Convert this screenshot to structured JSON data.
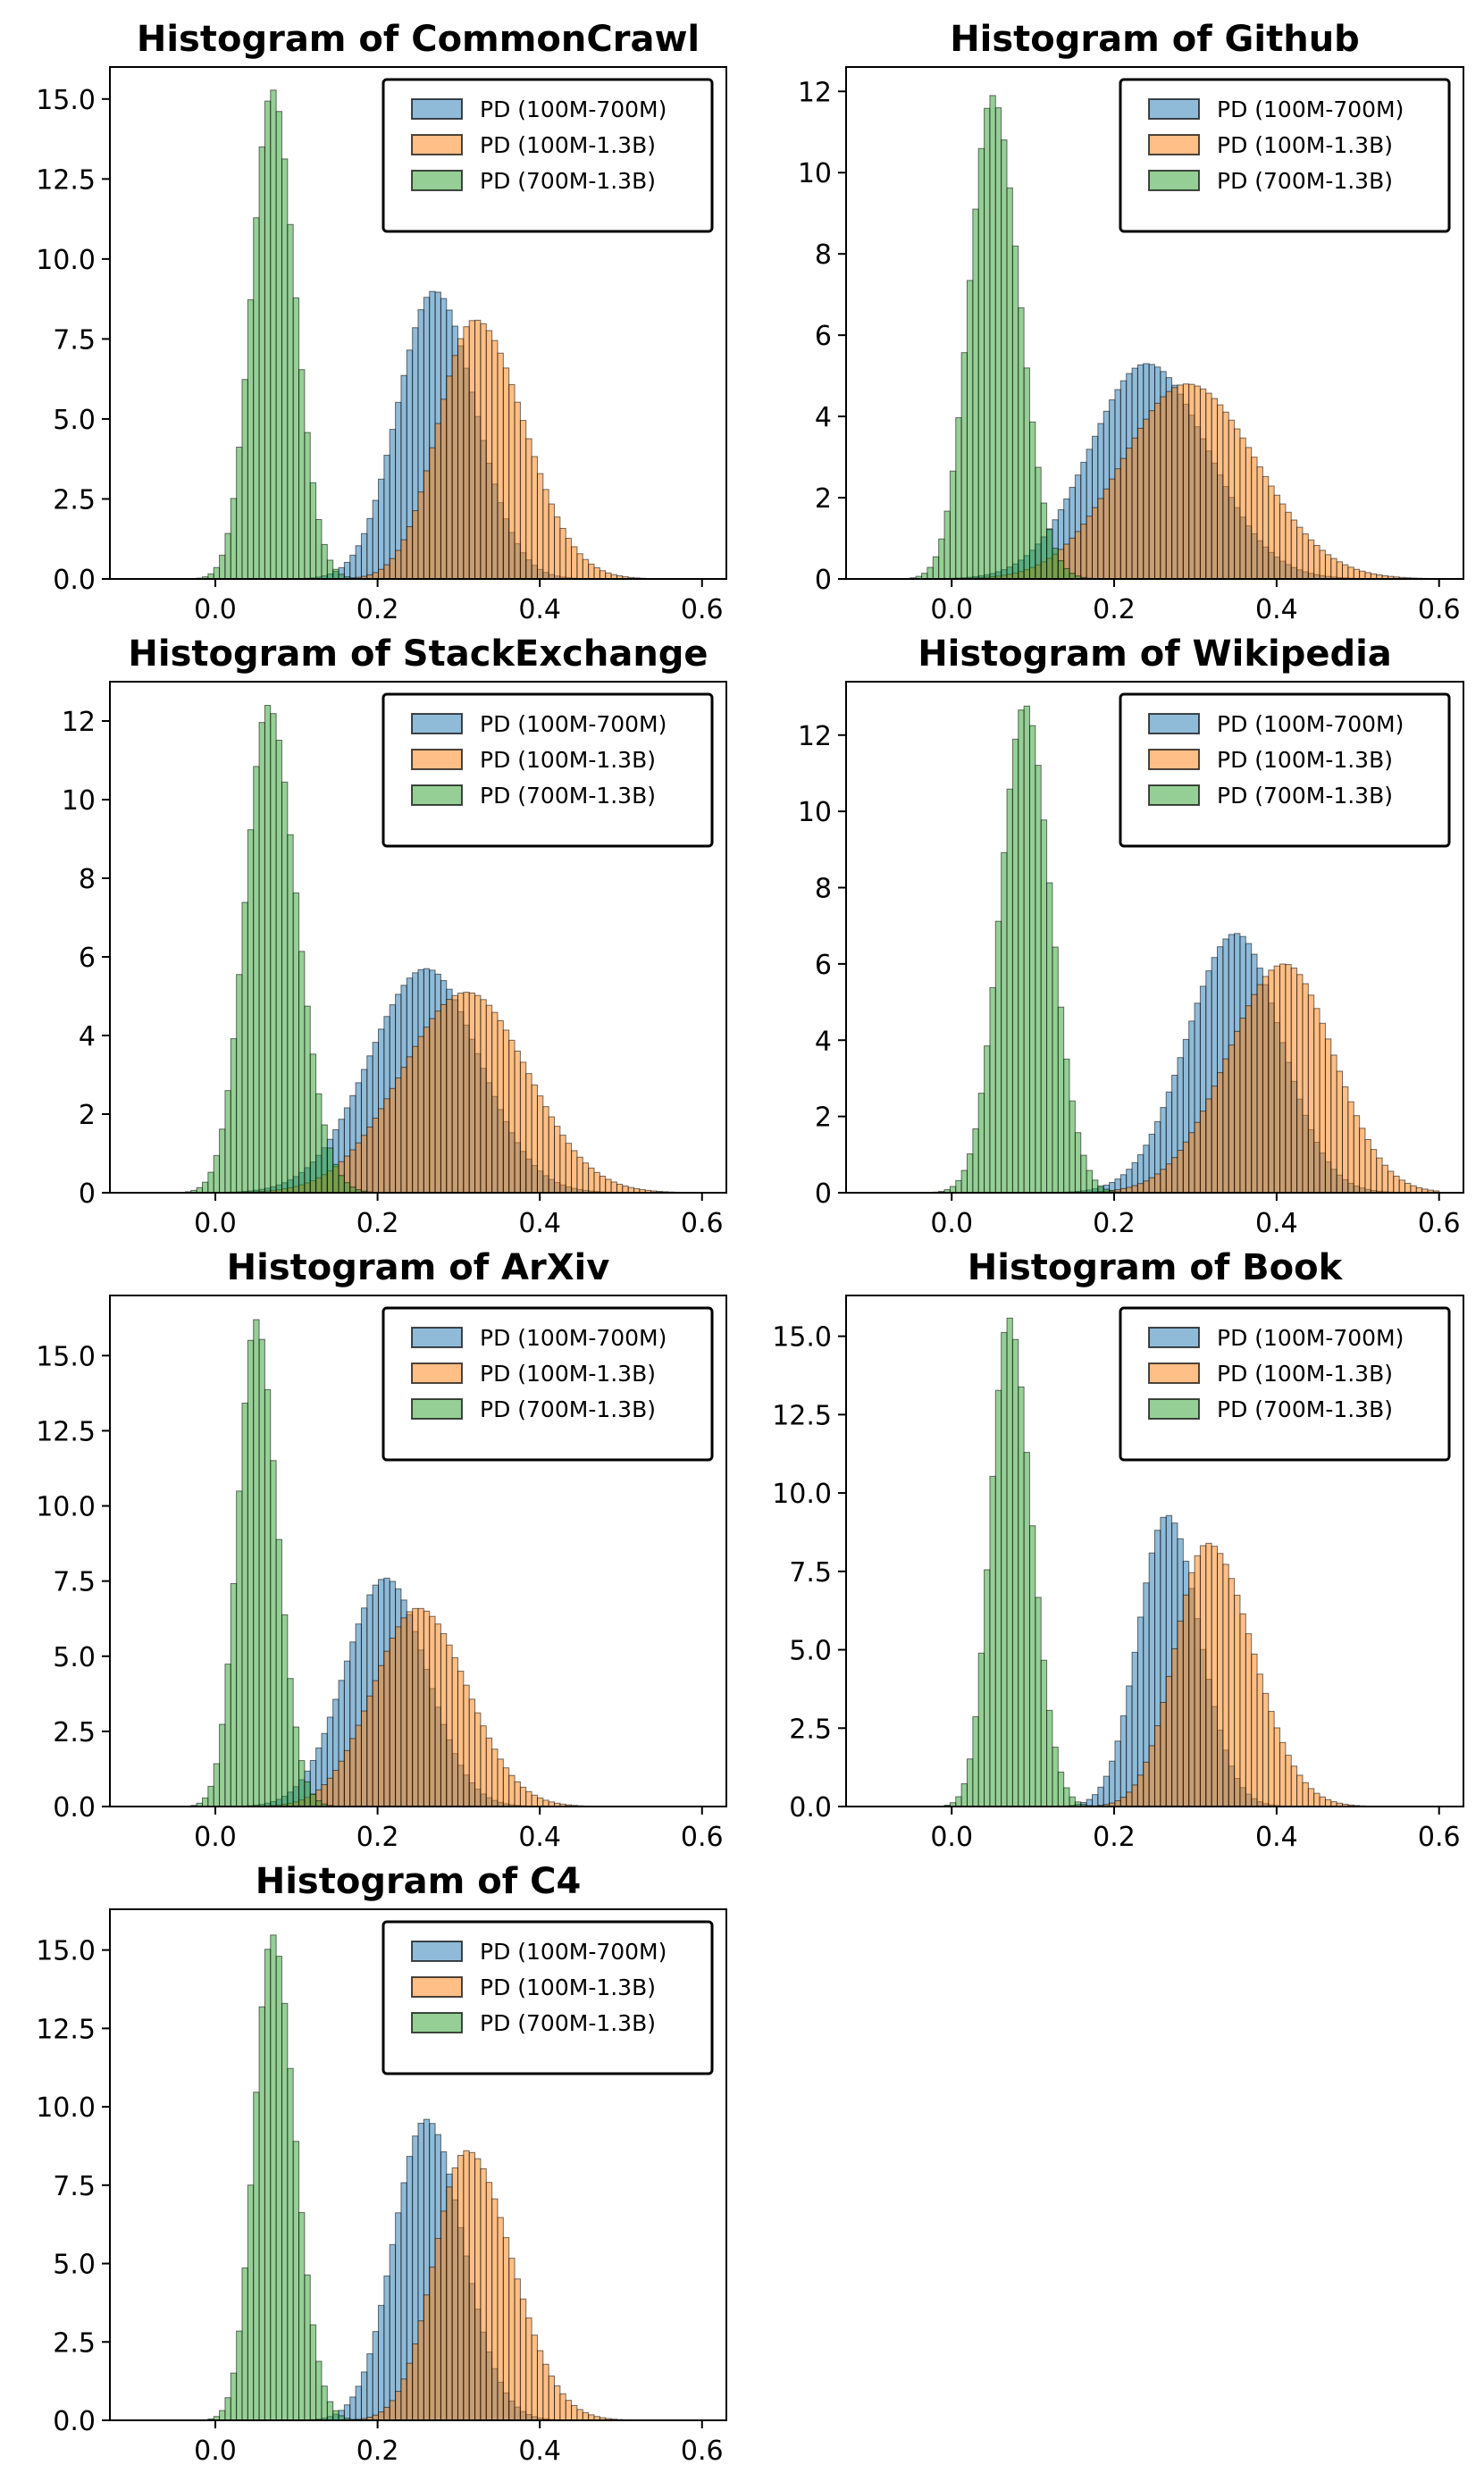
{
  "colors": {
    "series": [
      "#1f77b4",
      "#ff7f0e",
      "#2ca02c"
    ],
    "edge": "#000000"
  },
  "legend_labels": [
    "PD (100M-700M)",
    "PD (100M-1.3B)",
    "PD (700M-1.3B)"
  ],
  "chart_data": [
    {
      "type": "bar",
      "title": "Histogram of CommonCrawl",
      "xlim": [
        -0.13,
        0.63
      ],
      "ylim": [
        0,
        16.0
      ],
      "xticks": [
        0.0,
        0.2,
        0.4,
        0.6
      ],
      "yticks": [
        0.0,
        2.5,
        5.0,
        7.5,
        10.0,
        12.5,
        15.0
      ],
      "xtick_labels": [
        "0.0",
        "0.2",
        "0.4",
        "0.6"
      ],
      "ytick_labels": [
        "0.0",
        "2.5",
        "5.0",
        "7.5",
        "10.0",
        "12.5",
        "15.0"
      ],
      "series": [
        {
          "name": "PD (100M-700M)",
          "mean": 0.27,
          "peak": 9.0,
          "sd_left": 0.045,
          "sd_right": 0.05
        },
        {
          "name": "PD (100M-1.3B)",
          "mean": 0.32,
          "peak": 8.1,
          "sd_left": 0.045,
          "sd_right": 0.06
        },
        {
          "name": "PD (700M-1.3B)",
          "mean": 0.07,
          "peak": 15.3,
          "sd_left": 0.025,
          "sd_right": 0.028
        }
      ]
    },
    {
      "type": "bar",
      "title": "Histogram of Github",
      "xlim": [
        -0.13,
        0.63
      ],
      "ylim": [
        0,
        12.6
      ],
      "xticks": [
        0.0,
        0.2,
        0.4,
        0.6
      ],
      "yticks": [
        0,
        2,
        4,
        6,
        8,
        10,
        12
      ],
      "xtick_labels": [
        "0.0",
        "0.2",
        "0.4",
        "0.6"
      ],
      "ytick_labels": [
        "0",
        "2",
        "4",
        "6",
        "8",
        "10",
        "12"
      ],
      "series": [
        {
          "name": "PD (100M-700M)",
          "mean": 0.24,
          "peak": 5.3,
          "sd_left": 0.07,
          "sd_right": 0.075
        },
        {
          "name": "PD (100M-1.3B)",
          "mean": 0.29,
          "peak": 4.8,
          "sd_left": 0.08,
          "sd_right": 0.085
        },
        {
          "name": "PD (700M-1.3B)",
          "mean": 0.05,
          "peak": 11.9,
          "sd_left": 0.028,
          "sd_right": 0.033
        }
      ]
    },
    {
      "type": "bar",
      "title": "Histogram of StackExchange",
      "xlim": [
        -0.13,
        0.63
      ],
      "ylim": [
        0,
        13.0
      ],
      "xticks": [
        0.0,
        0.2,
        0.4,
        0.6
      ],
      "yticks": [
        0,
        2,
        4,
        6,
        8,
        10,
        12
      ],
      "xtick_labels": [
        "0.0",
        "0.2",
        "0.4",
        "0.6"
      ],
      "ytick_labels": [
        "0",
        "2",
        "4",
        "6",
        "8",
        "10",
        "12"
      ],
      "series": [
        {
          "name": "PD (100M-700M)",
          "mean": 0.26,
          "peak": 5.7,
          "sd_left": 0.07,
          "sd_right": 0.065
        },
        {
          "name": "PD (100M-1.3B)",
          "mean": 0.31,
          "peak": 5.1,
          "sd_left": 0.08,
          "sd_right": 0.075
        },
        {
          "name": "PD (700M-1.3B)",
          "mean": 0.065,
          "peak": 12.4,
          "sd_left": 0.028,
          "sd_right": 0.035
        }
      ]
    },
    {
      "type": "bar",
      "title": "Histogram of Wikipedia",
      "xlim": [
        -0.13,
        0.63
      ],
      "ylim": [
        0,
        13.4
      ],
      "xticks": [
        0.0,
        0.2,
        0.4,
        0.6
      ],
      "yticks": [
        0,
        2,
        4,
        6,
        8,
        10,
        12
      ],
      "xtick_labels": [
        "0.0",
        "0.2",
        "0.4",
        "0.6"
      ],
      "ytick_labels": [
        "0",
        "2",
        "4",
        "6",
        "8",
        "10",
        "12"
      ],
      "series": [
        {
          "name": "PD (100M-700M)",
          "mean": 0.35,
          "peak": 6.8,
          "sd_left": 0.06,
          "sd_right": 0.055
        },
        {
          "name": "PD (100M-1.3B)",
          "mean": 0.41,
          "peak": 6.0,
          "sd_left": 0.07,
          "sd_right": 0.06
        },
        {
          "name": "PD (700M-1.3B)",
          "mean": 0.09,
          "peak": 12.8,
          "sd_left": 0.03,
          "sd_right": 0.032
        }
      ]
    },
    {
      "type": "bar",
      "title": "Histogram of ArXiv",
      "xlim": [
        -0.13,
        0.63
      ],
      "ylim": [
        0,
        17.0
      ],
      "xticks": [
        0.0,
        0.2,
        0.4,
        0.6
      ],
      "yticks": [
        0.0,
        2.5,
        5.0,
        7.5,
        10.0,
        12.5,
        15.0
      ],
      "xtick_labels": [
        "0.0",
        "0.2",
        "0.4",
        "0.6"
      ],
      "ytick_labels": [
        "0.0",
        "2.5",
        "5.0",
        "7.5",
        "10.0",
        "12.5",
        "15.0"
      ],
      "series": [
        {
          "name": "PD (100M-700M)",
          "mean": 0.21,
          "peak": 7.6,
          "sd_left": 0.05,
          "sd_right": 0.05
        },
        {
          "name": "PD (100M-1.3B)",
          "mean": 0.25,
          "peak": 6.6,
          "sd_left": 0.055,
          "sd_right": 0.06
        },
        {
          "name": "PD (700M-1.3B)",
          "mean": 0.05,
          "peak": 16.2,
          "sd_left": 0.022,
          "sd_right": 0.026
        }
      ]
    },
    {
      "type": "bar",
      "title": "Histogram of Book",
      "xlim": [
        -0.13,
        0.63
      ],
      "ylim": [
        0,
        16.3
      ],
      "xticks": [
        0.0,
        0.2,
        0.4,
        0.6
      ],
      "yticks": [
        0.0,
        2.5,
        5.0,
        7.5,
        10.0,
        12.5,
        15.0
      ],
      "xtick_labels": [
        "0.0",
        "0.2",
        "0.4",
        "0.6"
      ],
      "ytick_labels": [
        "0.0",
        "2.5",
        "5.0",
        "7.5",
        "10.0",
        "12.5",
        "15.0"
      ],
      "series": [
        {
          "name": "PD (100M-700M)",
          "mean": 0.265,
          "peak": 9.3,
          "sd_left": 0.035,
          "sd_right": 0.04
        },
        {
          "name": "PD (100M-1.3B)",
          "mean": 0.315,
          "peak": 8.4,
          "sd_left": 0.04,
          "sd_right": 0.055
        },
        {
          "name": "PD (700M-1.3B)",
          "mean": 0.07,
          "peak": 15.6,
          "sd_left": 0.022,
          "sd_right": 0.028
        }
      ]
    },
    {
      "type": "bar",
      "title": "Histogram of C4",
      "xlim": [
        -0.13,
        0.63
      ],
      "ylim": [
        0,
        16.3
      ],
      "xticks": [
        0.0,
        0.2,
        0.4,
        0.6
      ],
      "yticks": [
        0.0,
        2.5,
        5.0,
        7.5,
        10.0,
        12.5,
        15.0
      ],
      "xtick_labels": [
        "0.0",
        "0.2",
        "0.4",
        "0.6"
      ],
      "ytick_labels": [
        "0.0",
        "2.5",
        "5.0",
        "7.5",
        "10.0",
        "12.5",
        "15.0"
      ],
      "series": [
        {
          "name": "PD (100M-700M)",
          "mean": 0.26,
          "peak": 9.6,
          "sd_left": 0.04,
          "sd_right": 0.045
        },
        {
          "name": "PD (100M-1.3B)",
          "mean": 0.31,
          "peak": 8.6,
          "sd_left": 0.04,
          "sd_right": 0.055
        },
        {
          "name": "PD (700M-1.3B)",
          "mean": 0.07,
          "peak": 15.5,
          "sd_left": 0.022,
          "sd_right": 0.028
        }
      ]
    }
  ]
}
